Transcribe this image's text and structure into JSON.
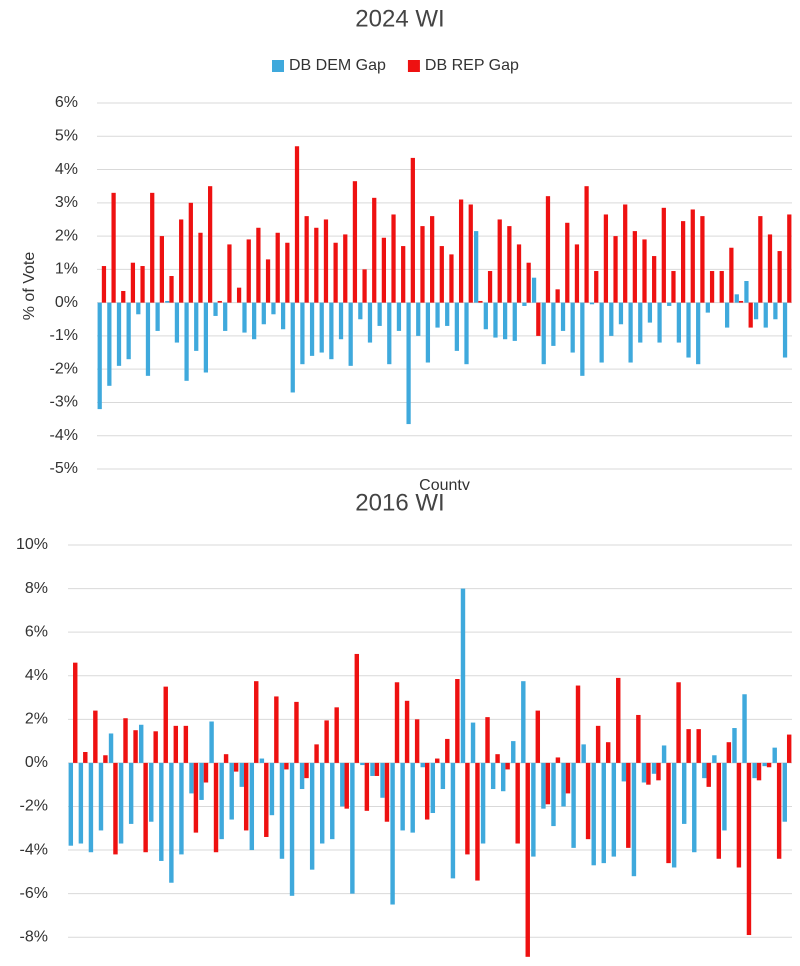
{
  "chart_data": [
    {
      "type": "bar",
      "title": "2024 WI",
      "ylabel": "% of Vote",
      "xlabel": "County",
      "categories": [
        null,
        null,
        null,
        null,
        null,
        null,
        null,
        null,
        null,
        null,
        null,
        null,
        null,
        null,
        null,
        null,
        null,
        null,
        null,
        null,
        null,
        null,
        null,
        null,
        null,
        null,
        null,
        null,
        null,
        null,
        null,
        null,
        null,
        null,
        null,
        null,
        null,
        null,
        null,
        null,
        null,
        null,
        null,
        null,
        null,
        null,
        null,
        null,
        null,
        null,
        null,
        null,
        null,
        null,
        null,
        null,
        null,
        null,
        null,
        null,
        null,
        null,
        null,
        null,
        null,
        null,
        null,
        null,
        null,
        null,
        null,
        null
      ],
      "series": [
        {
          "name": "DB DEM Gap",
          "color": "#3fa9dc",
          "values": [
            -3.2,
            -2.5,
            -1.9,
            -1.7,
            -0.35,
            -2.2,
            -0.85,
            0.05,
            -1.2,
            -2.35,
            -1.45,
            -2.1,
            -0.4,
            -0.85,
            0,
            -0.9,
            -1.1,
            -0.65,
            -0.35,
            -0.8,
            -2.7,
            -1.85,
            -1.6,
            -1.5,
            -1.7,
            -1.1,
            -1.9,
            -0.5,
            -1.2,
            -0.7,
            -1.85,
            -0.85,
            -3.65,
            -1.0,
            -1.8,
            -0.75,
            -0.7,
            -1.45,
            -1.85,
            2.15,
            -0.8,
            -1.05,
            -1.1,
            -1.15,
            -0.1,
            0.75,
            -1.85,
            -1.3,
            -0.85,
            -1.5,
            -2.2,
            -0.05,
            -1.8,
            -1.0,
            -0.65,
            -1.8,
            -1.2,
            -0.6,
            -1.2,
            -0.1,
            -1.2,
            -1.65,
            -1.85,
            -0.3,
            0,
            -0.75,
            0.25,
            0.65,
            -0.5,
            -0.75,
            -0.5,
            -1.65
          ]
        },
        {
          "name": "DB REP Gap",
          "color": "#ee1111",
          "values": [
            1.1,
            3.3,
            0.35,
            1.2,
            1.1,
            3.3,
            2.0,
            0.8,
            2.5,
            3.0,
            2.1,
            3.5,
            0.05,
            1.75,
            0.45,
            1.9,
            2.25,
            1.3,
            2.1,
            1.8,
            4.7,
            2.6,
            2.25,
            2.5,
            1.8,
            2.05,
            3.65,
            1.0,
            3.15,
            1.95,
            2.65,
            1.7,
            4.35,
            2.3,
            2.6,
            1.7,
            1.45,
            3.1,
            2.95,
            0.05,
            0.95,
            2.5,
            2.3,
            1.75,
            1.2,
            -1.0,
            3.2,
            0.4,
            2.4,
            1.75,
            3.5,
            0.95,
            2.65,
            2.0,
            2.95,
            2.15,
            1.9,
            1.4,
            2.85,
            0.95,
            2.45,
            2.8,
            2.6,
            0.95,
            0.95,
            1.65,
            0.05,
            -0.75,
            2.6,
            2.05,
            1.55,
            2.65
          ]
        }
      ],
      "ylim": [
        -5,
        6
      ],
      "yticks": [
        {
          "value": -5,
          "label": "-5%"
        },
        {
          "value": -4,
          "label": "-4%"
        },
        {
          "value": -3,
          "label": "-3%"
        },
        {
          "value": -2,
          "label": "-2%"
        },
        {
          "value": -1,
          "label": "-1%"
        },
        {
          "value": 0,
          "label": "0%"
        },
        {
          "value": 1,
          "label": "1%"
        },
        {
          "value": 2,
          "label": "2%"
        },
        {
          "value": 3,
          "label": "3%"
        },
        {
          "value": 4,
          "label": "4%"
        },
        {
          "value": 5,
          "label": "5%"
        },
        {
          "value": 6,
          "label": "6%"
        }
      ],
      "grid": true,
      "legend": "top"
    },
    {
      "type": "bar",
      "title": "2016 WI",
      "categories": [
        null,
        null,
        null,
        null,
        null,
        null,
        null,
        null,
        null,
        null,
        null,
        null,
        null,
        null,
        null,
        null,
        null,
        null,
        null,
        null,
        null,
        null,
        null,
        null,
        null,
        null,
        null,
        null,
        null,
        null,
        null,
        null,
        null,
        null,
        null,
        null,
        null,
        null,
        null,
        null,
        null,
        null,
        null,
        null,
        null,
        null,
        null,
        null,
        null,
        null,
        null,
        null,
        null,
        null,
        null,
        null,
        null,
        null,
        null,
        null,
        null,
        null,
        null,
        null,
        null,
        null,
        null,
        null,
        null,
        null,
        null,
        null
      ],
      "series": [
        {
          "color": "#3fa9dc",
          "values": [
            -3.8,
            -3.7,
            -4.1,
            -3.1,
            1.35,
            -3.7,
            -2.8,
            1.75,
            -2.7,
            -4.5,
            -5.5,
            -4.2,
            -1.4,
            -1.7,
            1.9,
            -3.5,
            -2.6,
            -1.1,
            -4.0,
            0.2,
            -2.4,
            -4.4,
            -6.1,
            -1.2,
            -4.9,
            -3.7,
            -3.5,
            -2.0,
            -6.0,
            -0.1,
            -0.6,
            -1.6,
            -6.5,
            -3.1,
            -3.2,
            -0.2,
            -2.3,
            -1.2,
            -5.3,
            8.0,
            1.85,
            -3.7,
            -1.2,
            -1.3,
            1.0,
            3.75,
            -4.3,
            -2.1,
            -2.9,
            -2.0,
            -3.9,
            0.85,
            -4.7,
            -4.6,
            -4.3,
            -0.85,
            -5.2,
            -0.9,
            -0.5,
            0.8,
            -4.8,
            -2.8,
            -4.1,
            -0.7,
            0.35,
            -3.1,
            1.6,
            3.15,
            -0.7,
            -0.15,
            0.7,
            -2.7
          ]
        },
        {
          "color": "#ee1111",
          "values": [
            4.6,
            0.5,
            2.4,
            0.35,
            -4.2,
            2.05,
            1.5,
            -4.1,
            1.45,
            3.5,
            1.7,
            1.7,
            -3.2,
            -0.9,
            -4.1,
            0.4,
            -0.4,
            -3.1,
            3.75,
            -3.4,
            3.05,
            -0.3,
            2.8,
            -0.7,
            0.85,
            1.95,
            2.55,
            -2.1,
            5.0,
            -2.2,
            -0.6,
            -2.7,
            3.7,
            2.85,
            2.0,
            -2.6,
            0.2,
            1.1,
            3.85,
            -4.2,
            -5.4,
            2.1,
            0.4,
            -0.3,
            -3.7,
            -8.9,
            2.4,
            -1.9,
            0.25,
            -1.4,
            3.55,
            -3.5,
            1.7,
            0.95,
            3.9,
            -3.9,
            2.2,
            -1.0,
            -0.8,
            -4.6,
            3.7,
            1.55,
            1.55,
            -1.1,
            -4.4,
            0.95,
            -4.8,
            -7.9,
            -0.8,
            -0.2,
            -4.4,
            1.3
          ]
        }
      ],
      "ylim": [
        -9,
        10
      ],
      "yticks": [
        {
          "value": -8,
          "label": "-8%"
        },
        {
          "value": -6,
          "label": "-6%"
        },
        {
          "value": -4,
          "label": "-4%"
        },
        {
          "value": -2,
          "label": "-2%"
        },
        {
          "value": 0,
          "label": "0%"
        },
        {
          "value": 2,
          "label": "2%"
        },
        {
          "value": 4,
          "label": "4%"
        },
        {
          "value": 6,
          "label": "6%"
        },
        {
          "value": 8,
          "label": "8%"
        },
        {
          "value": 10,
          "label": "10%"
        }
      ],
      "grid": true
    }
  ]
}
